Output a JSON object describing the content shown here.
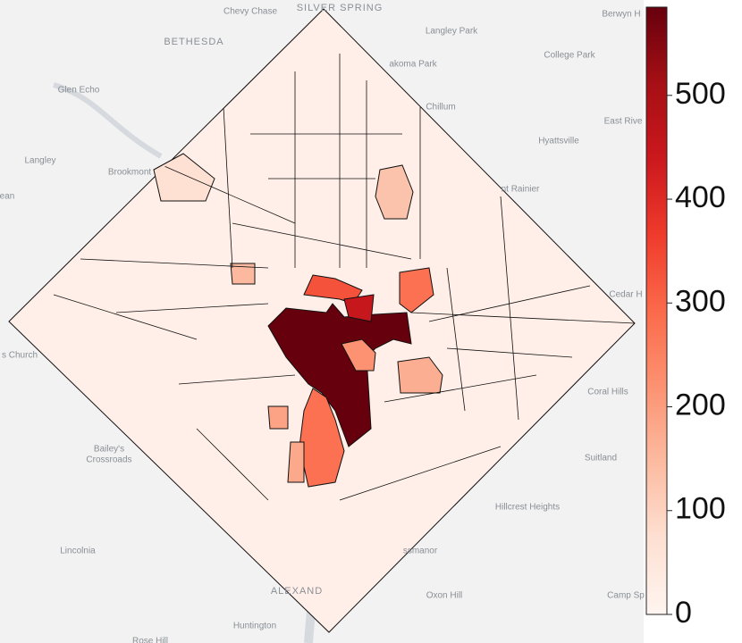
{
  "chart_data": {
    "type": "choropleth",
    "places": [
      "Chevy Chase",
      "SILVER SPRING",
      "Berwyn H",
      "BETHESDA",
      "Langley Park",
      "College Park",
      "akoma Park",
      "Glen Echo",
      "Chillum",
      "East Rive",
      "Hyattsville",
      "Langley",
      "Brookmont",
      "ean",
      "nt Rainier",
      "Cedar H",
      "s Church",
      "Coral Hills",
      "Bailey's",
      "Crossroads",
      "Suitland",
      "Hillcrest Heights",
      "Lincolnia",
      "ssmanor",
      "ALEXAND",
      "Oxon Hill",
      "Camp Sp",
      "Huntington",
      "Rose Hill"
    ],
    "values": [
      20,
      585,
      280,
      330,
      450,
      280,
      220,
      170,
      190,
      130,
      180,
      70,
      150
    ],
    "colorbar": {
      "lim": [
        0,
        585
      ],
      "ticks": [
        0,
        100,
        200,
        300,
        400,
        500
      ]
    }
  }
}
